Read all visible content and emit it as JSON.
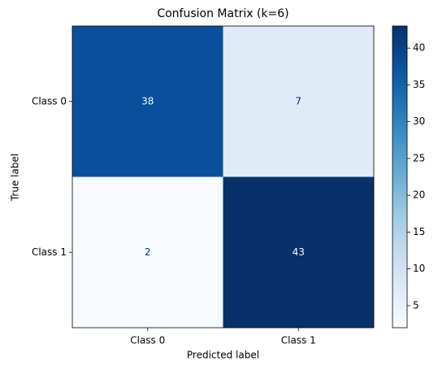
{
  "chart_data": {
    "type": "heatmap",
    "title": "Confusion Matrix (k=6)",
    "x_label": "Predicted label",
    "y_label": "True label",
    "x_categories": [
      "Class 0",
      "Class 1"
    ],
    "y_categories": [
      "Class 0",
      "Class 1"
    ],
    "values": [
      [
        38,
        7
      ],
      [
        2,
        43
      ]
    ],
    "colormap": "Blues",
    "clim": [
      2,
      43
    ],
    "cticks": [
      5,
      10,
      15,
      20,
      25,
      30,
      35,
      40
    ]
  }
}
